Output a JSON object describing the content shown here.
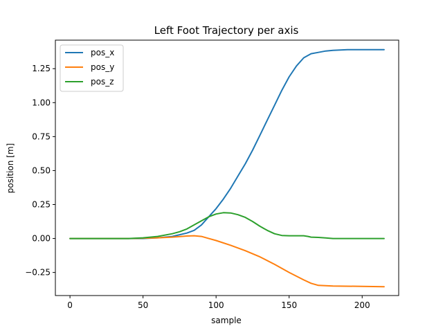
{
  "chart_data": {
    "type": "line",
    "title": "Left Foot Trajectory per axis",
    "xlabel": "sample",
    "ylabel": "position [m]",
    "xlim": [
      -10,
      225
    ],
    "ylim": [
      -0.42,
      1.46
    ],
    "x_ticks": [
      0,
      50,
      100,
      150,
      200
    ],
    "x_tick_labels": [
      "0",
      "50",
      "100",
      "150",
      "200"
    ],
    "y_ticks": [
      -0.25,
      0.0,
      0.25,
      0.5,
      0.75,
      1.0,
      1.25
    ],
    "y_tick_labels": [
      "−0.25",
      "0.00",
      "0.25",
      "0.50",
      "0.75",
      "1.00",
      "1.25"
    ],
    "grid": false,
    "legend_position": "top-left",
    "series": [
      {
        "name": "pos_x",
        "color": "#1f77b4",
        "x": [
          0,
          20,
          40,
          50,
          60,
          70,
          80,
          85,
          90,
          95,
          100,
          105,
          110,
          115,
          120,
          125,
          130,
          135,
          140,
          145,
          150,
          155,
          160,
          165,
          170,
          175,
          180,
          190,
          200,
          215
        ],
        "y": [
          0.0,
          0.0,
          0.0,
          0.0,
          0.005,
          0.015,
          0.04,
          0.06,
          0.1,
          0.16,
          0.22,
          0.29,
          0.37,
          0.46,
          0.55,
          0.65,
          0.76,
          0.87,
          0.98,
          1.09,
          1.19,
          1.27,
          1.33,
          1.36,
          1.37,
          1.38,
          1.385,
          1.39,
          1.39,
          1.39
        ]
      },
      {
        "name": "pos_y",
        "color": "#ff7f0e",
        "x": [
          0,
          40,
          60,
          70,
          80,
          85,
          90,
          95,
          100,
          110,
          120,
          130,
          140,
          150,
          160,
          165,
          170,
          180,
          200,
          215
        ],
        "y": [
          0.0,
          0.0,
          0.005,
          0.01,
          0.018,
          0.02,
          0.015,
          0.0,
          -0.015,
          -0.05,
          -0.09,
          -0.135,
          -0.19,
          -0.25,
          -0.305,
          -0.33,
          -0.345,
          -0.35,
          -0.352,
          -0.355
        ]
      },
      {
        "name": "pos_z",
        "color": "#2ca02c",
        "x": [
          0,
          40,
          50,
          60,
          70,
          75,
          80,
          85,
          90,
          95,
          100,
          105,
          110,
          115,
          120,
          125,
          130,
          135,
          140,
          145,
          150,
          155,
          160,
          163,
          165,
          170,
          175,
          180,
          200,
          215
        ],
        "y": [
          0.0,
          0.0,
          0.005,
          0.015,
          0.035,
          0.05,
          0.07,
          0.1,
          0.13,
          0.16,
          0.18,
          0.19,
          0.188,
          0.175,
          0.155,
          0.125,
          0.09,
          0.06,
          0.035,
          0.022,
          0.02,
          0.02,
          0.02,
          0.015,
          0.01,
          0.008,
          0.004,
          0.0,
          0.0,
          0.0
        ]
      }
    ]
  }
}
